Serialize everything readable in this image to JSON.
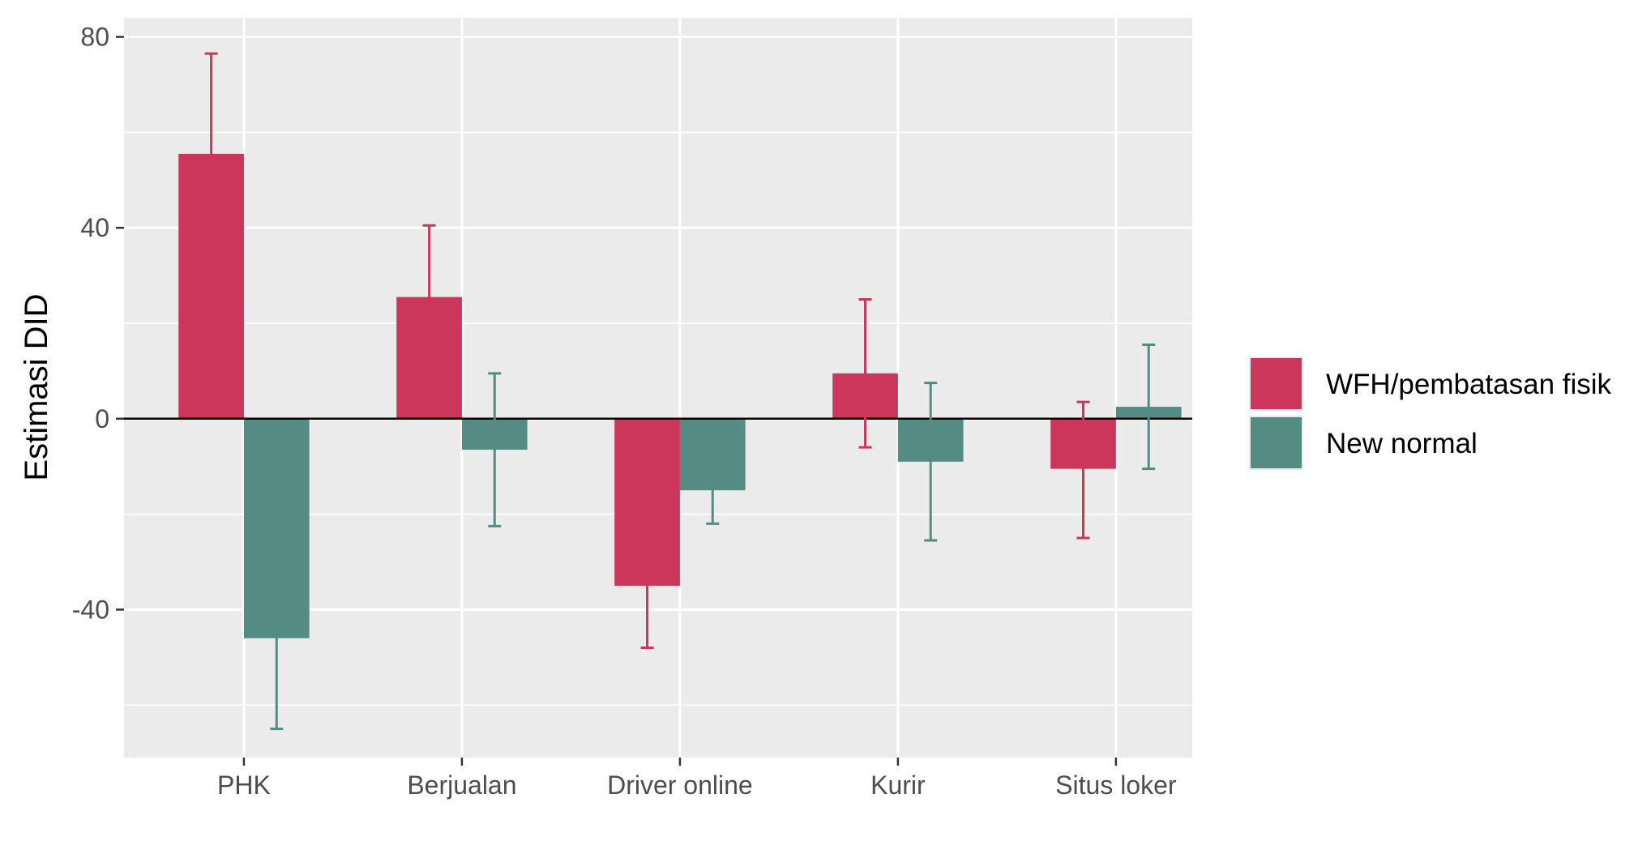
{
  "chart_data": {
    "type": "bar",
    "title": "",
    "xlabel": "",
    "ylabel": "Estimasi DID",
    "categories": [
      "PHK",
      "Berjualan",
      "Driver online",
      "Kurir",
      "Situs loker"
    ],
    "series": [
      {
        "name": "WFH/pembatasan fisik",
        "color": "#cc365a",
        "values": [
          55.5,
          25.5,
          -35,
          9.5,
          -10.5
        ],
        "error_low": [
          34.5,
          10.5,
          -48,
          -6,
          -25
        ],
        "error_high": [
          76.5,
          40.5,
          -22,
          25,
          3.5
        ]
      },
      {
        "name": "New normal",
        "color": "#548b83",
        "values": [
          -46,
          -6.5,
          -15,
          -9,
          2.5
        ],
        "error_low": [
          -65,
          -22.5,
          -22,
          -25.5,
          -10.5
        ],
        "error_high": [
          -27,
          9.5,
          -8,
          7.5,
          15.5
        ]
      }
    ],
    "ylim": [
      -71,
      84
    ],
    "yticks": [
      -40,
      0,
      40,
      80
    ],
    "grid": true,
    "legend_position": "right"
  }
}
